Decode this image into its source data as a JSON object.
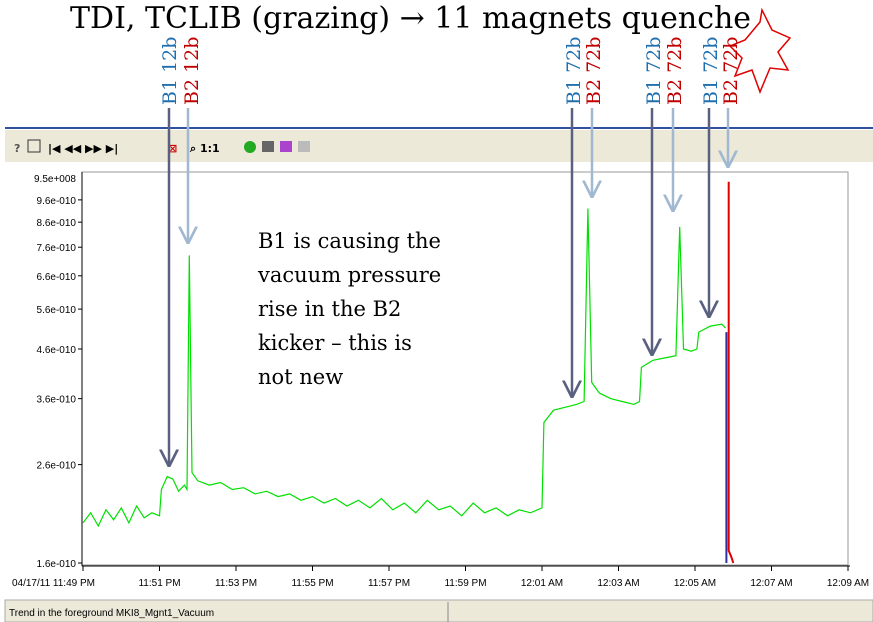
{
  "chart_data": {
    "type": "line",
    "title": "TDI, TCLIB (grazing) → 11 magnets quenche",
    "log_y": true,
    "ylim": [
      1.6e-10,
      1.08e-09
    ],
    "xlim": [
      0,
      20
    ],
    "y_axis_top_label": "9.5e+008",
    "yticks": [
      {
        "value": 1.6e-10,
        "label": "1.6e-010"
      },
      {
        "value": 2.6e-10,
        "label": "2.6e-010"
      },
      {
        "value": 3.6e-10,
        "label": "3.6e-010"
      },
      {
        "value": 4.6e-10,
        "label": "4.6e-010"
      },
      {
        "value": 5.6e-10,
        "label": "5.6e-010"
      },
      {
        "value": 6.6e-10,
        "label": "6.6e-010"
      },
      {
        "value": 7.6e-10,
        "label": "7.6e-010"
      },
      {
        "value": 8.6e-10,
        "label": "8.6e-010"
      },
      {
        "value": 9.6e-10,
        "label": "9.6e-010"
      }
    ],
    "xticks": [
      {
        "value": 0,
        "label": "04/17/11 11:49 PM"
      },
      {
        "value": 2,
        "label": "11:51 PM"
      },
      {
        "value": 4,
        "label": "11:53 PM"
      },
      {
        "value": 6,
        "label": "11:55 PM"
      },
      {
        "value": 8,
        "label": "11:57 PM"
      },
      {
        "value": 10,
        "label": "11:59 PM"
      },
      {
        "value": 12,
        "label": "12:01 AM"
      },
      {
        "value": 14,
        "label": "12:03 AM"
      },
      {
        "value": 16,
        "label": "12:05 AM"
      },
      {
        "value": 18,
        "label": "12:07 AM"
      },
      {
        "value": 20,
        "label": "12:09 AM"
      }
    ],
    "series": [
      {
        "color": "#00e000",
        "x": [
          0,
          0.2,
          0.4,
          0.6,
          0.8,
          1.0,
          1.2,
          1.4,
          1.6,
          1.8,
          2.0,
          2.05,
          2.2,
          2.35,
          2.5,
          2.65,
          2.72,
          2.78,
          2.85,
          3.0,
          3.3,
          3.6,
          3.9,
          4.2,
          4.5,
          4.8,
          5.1,
          5.4,
          5.7,
          6.0,
          6.3,
          6.6,
          6.9,
          7.2,
          7.5,
          7.8,
          8.1,
          8.4,
          8.7,
          9.0,
          9.3,
          9.6,
          9.9,
          10.2,
          10.5,
          10.8,
          11.1,
          11.4,
          11.7,
          12.0,
          12.05,
          12.3,
          12.6,
          12.9,
          13.1,
          13.2,
          13.3,
          13.5,
          13.8,
          14.1,
          14.4,
          14.55,
          14.6,
          14.9,
          15.2,
          15.5,
          15.6,
          15.7,
          15.9,
          16.05,
          16.1,
          16.4,
          16.7,
          16.8
        ],
        "values": [
          1.95e-10,
          2.05e-10,
          1.92e-10,
          2.08e-10,
          1.98e-10,
          2.1e-10,
          1.95e-10,
          2.12e-10,
          2e-10,
          2.05e-10,
          2.02e-10,
          2.3e-10,
          2.45e-10,
          2.42e-10,
          2.28e-10,
          2.35e-10,
          2.3e-10,
          7.3e-10,
          2.5e-10,
          2.4e-10,
          2.35e-10,
          2.38e-10,
          2.3e-10,
          2.32e-10,
          2.25e-10,
          2.28e-10,
          2.22e-10,
          2.25e-10,
          2.18e-10,
          2.22e-10,
          2.15e-10,
          2.2e-10,
          2.12e-10,
          2.18e-10,
          2.1e-10,
          2.2e-10,
          2.08e-10,
          2.15e-10,
          2.05e-10,
          2.18e-10,
          2.08e-10,
          2.12e-10,
          2.02e-10,
          2.15e-10,
          2.05e-10,
          2.1e-10,
          2.02e-10,
          2.08e-10,
          2.05e-10,
          2.1e-10,
          3.2e-10,
          3.4e-10,
          3.45e-10,
          3.5e-10,
          3.55e-10,
          9.2e-10,
          3.9e-10,
          3.7e-10,
          3.6e-10,
          3.55e-10,
          3.5e-10,
          3.55e-10,
          4.2e-10,
          4.35e-10,
          4.4e-10,
          4.45e-10,
          8.4e-10,
          4.6e-10,
          4.55e-10,
          4.6e-10,
          5e-10,
          5.15e-10,
          5.2e-10,
          5.1e-10
        ]
      },
      {
        "color": "#3030a0",
        "x": [
          16.82,
          16.82
        ],
        "values": [
          5e-10,
          1.6e-10
        ]
      },
      {
        "color": "#e00000",
        "x": [
          16.88,
          16.88,
          16.95,
          17.0
        ],
        "values": [
          1.05e-09,
          1.7e-10,
          1.65e-10,
          1.6e-10
        ]
      }
    ]
  },
  "annotations": [
    "B1 12b",
    "B2 12b",
    "B1 72b",
    "B2 72b",
    "B1 72b",
    "B2 72b",
    "B1 72b",
    "B2 72b"
  ],
  "note_lines": [
    "B1 is causing the",
    "vacuum pressure",
    "rise in the B2",
    "kicker – this is",
    "not new"
  ],
  "status_bar": "Trend in the foreground MKI8_Mgnt1_Vacuum"
}
